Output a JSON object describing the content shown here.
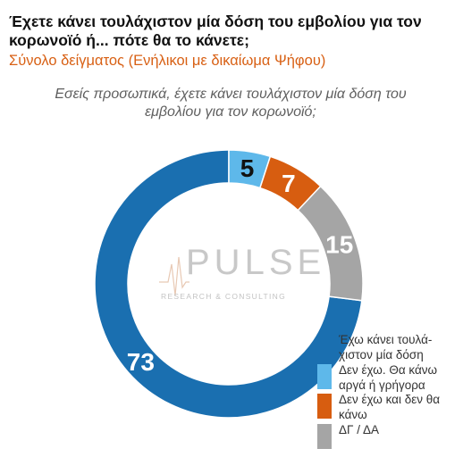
{
  "header": {
    "title": "Έχετε κάνει τουλάχιστον μία δόση του εμβολίου για τον κορωνοϊό ή... πότε θα το κάνετε;",
    "subtitle": "Σύνολο δείγματος (Ενήλικοι με δικαίωμα Ψήφου)",
    "question": "Εσείς προσωπικά, έχετε κάνει τουλάχιστον μία δόση του εμβολίου για τον κορωνοϊό;"
  },
  "watermark": {
    "main": "PULSE",
    "sub": "RESEARCH & CONSULTING"
  },
  "chart_data": {
    "type": "pie",
    "title": "Έχετε κάνει τουλάχιστον μία δόση του εμβολίου για τον κορωνοϊό ή... πότε θα το κάνετε;",
    "subtitle": "Σύνολο δείγματος (Ενήλικοι με δικαίωμα Ψήφου)",
    "donut": true,
    "legend_position": "bottom-right",
    "slices": [
      {
        "label": "Έχω κάνει τουλά-χιστον μία δόση",
        "value": 73,
        "color": "#1a6fb0"
      },
      {
        "label": "Δεν έχω. Θα κάνω αργά ή γρήγορα",
        "value": 5,
        "color": "#5eb8ea"
      },
      {
        "label": "Δεν έχω και δεν θα κάνω",
        "value": 7,
        "color": "#d75d10"
      },
      {
        "label": "ΔΓ / ΔΑ",
        "value": 15,
        "color": "#a5a5a5"
      }
    ]
  }
}
